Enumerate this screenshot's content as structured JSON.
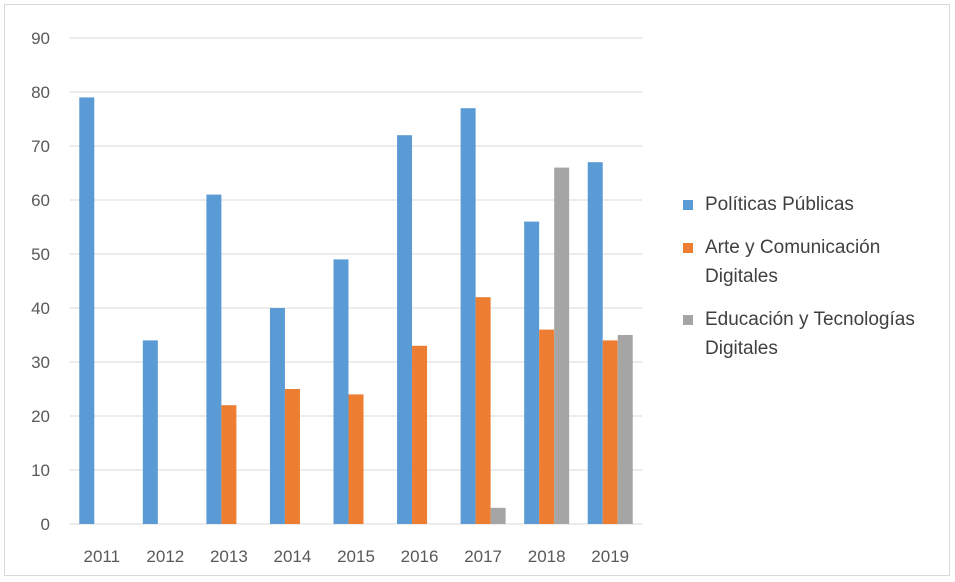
{
  "chart_data": {
    "type": "bar",
    "categories": [
      "2011",
      "2012",
      "2013",
      "2014",
      "2015",
      "2016",
      "2017",
      "2018",
      "2019"
    ],
    "series": [
      {
        "name": "Políticas Públicas",
        "color": "#5b9bd5",
        "values": [
          79,
          34,
          61,
          40,
          49,
          72,
          77,
          56,
          67
        ]
      },
      {
        "name": "Arte y Comunicación Digitales",
        "color": "#ed7d31",
        "values": [
          0,
          0,
          22,
          25,
          24,
          33,
          42,
          36,
          34
        ]
      },
      {
        "name": "Educación y Tecnologías Digitales",
        "color": "#a5a5a5",
        "values": [
          0,
          0,
          0,
          0,
          0,
          0,
          3,
          66,
          35
        ]
      }
    ],
    "yticks": [
      "0",
      "10",
      "20",
      "30",
      "40",
      "50",
      "60",
      "70",
      "80",
      "90"
    ],
    "ylim": [
      0,
      90
    ],
    "grid": true,
    "legend_position": "right"
  }
}
